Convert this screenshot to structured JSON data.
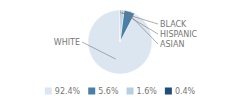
{
  "chart_data": {
    "type": "pie",
    "categories": [
      "WHITE",
      "ASIAN",
      "HISPANIC",
      "BLACK"
    ],
    "values": [
      92.4,
      5.6,
      1.6,
      0.4
    ],
    "value_labels": [
      "92.4%",
      "5.6%",
      "1.6%",
      "0.4%"
    ],
    "colors": [
      "#dce6f1",
      "#4a7fa5",
      "#b8cfe0",
      "#1f4e79"
    ],
    "legend": "bottom"
  }
}
